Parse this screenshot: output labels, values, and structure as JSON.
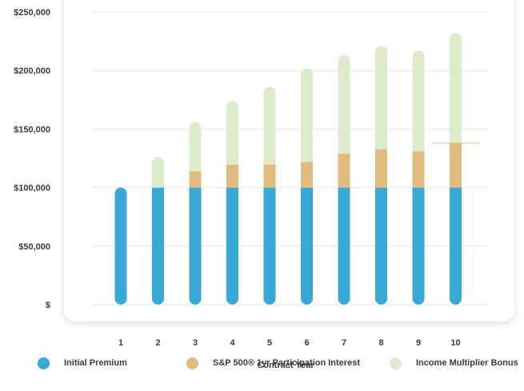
{
  "chart_data": {
    "type": "bar",
    "stacked": true,
    "categories": [
      "1",
      "2",
      "3",
      "4",
      "5",
      "6",
      "7",
      "8",
      "9",
      "10"
    ],
    "series": [
      {
        "name": "Initial Premium",
        "color": "#36a9d6",
        "values": [
          100000,
          100000,
          100000,
          100000,
          100000,
          100000,
          100000,
          100000,
          100000,
          100000
        ]
      },
      {
        "name": "S&P 500® 1yr Participation Interest",
        "color": "#e1bc7e",
        "values": [
          0,
          0,
          14000,
          19500,
          19500,
          22000,
          29000,
          33000,
          31000,
          38000
        ]
      },
      {
        "name": "Income Multiplier Bonus",
        "color": "#dcebc9",
        "values": [
          0,
          26000,
          42000,
          54500,
          66500,
          80000,
          84000,
          88000,
          86000,
          94000
        ]
      }
    ],
    "title": "",
    "xlabel": "Contract Year",
    "ylabel": "",
    "ylim": [
      0,
      250000
    ],
    "y_ticks": [
      "$",
      "$50,000",
      "$100,000",
      "$150,000",
      "$200,000",
      "$250,000"
    ],
    "grid": true,
    "legend_position": "bottom"
  }
}
